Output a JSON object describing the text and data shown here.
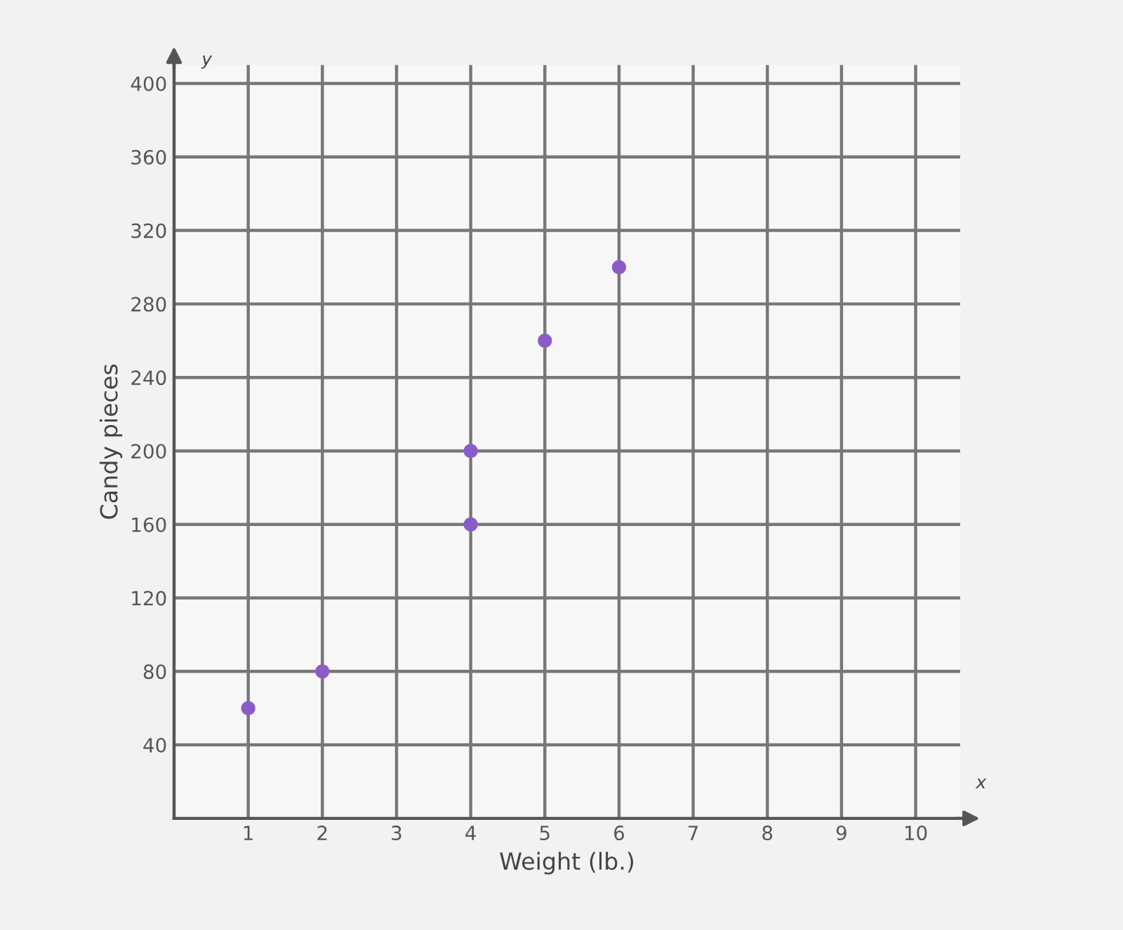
{
  "chart_data": {
    "type": "scatter",
    "xlabel": "Weight (lb.)",
    "ylabel": "Candy pieces",
    "annotations": [
      "x",
      "y"
    ],
    "series": [
      {
        "color": "#8a5cc8",
        "x": [
          1,
          2,
          4,
          4,
          5,
          6
        ],
        "values": [
          60,
          80,
          160,
          200,
          260,
          300
        ]
      }
    ],
    "xlim": [
      0,
      10.6
    ],
    "ylim": [
      0,
      410
    ],
    "xticks": [
      1,
      2,
      3,
      4,
      5,
      6,
      7,
      8,
      9,
      10
    ],
    "yticks": [
      40,
      80,
      120,
      160,
      200,
      240,
      280,
      320,
      360,
      400
    ],
    "grid": true,
    "marker": "circle",
    "legend": false
  }
}
